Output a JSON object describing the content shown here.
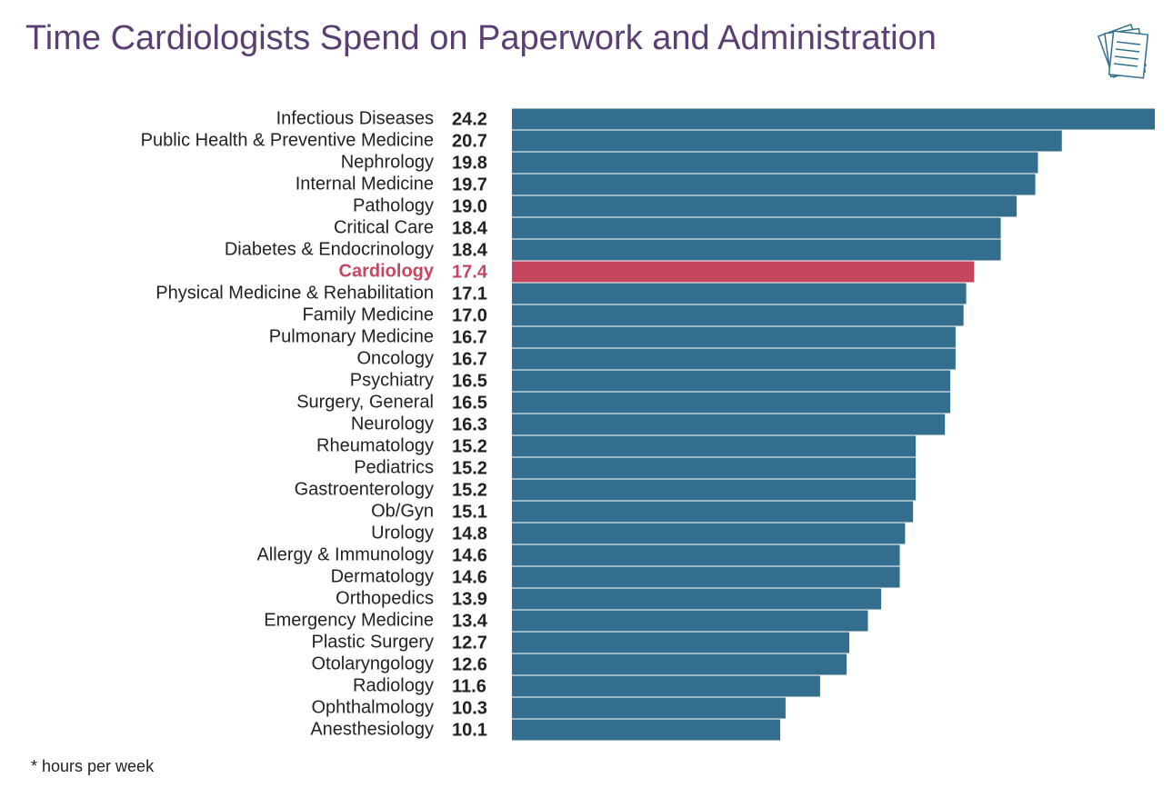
{
  "chart_data": {
    "type": "bar",
    "orientation": "horizontal",
    "title": "Time Cardiologists Spend on Paperwork and Administration",
    "note": "* hours per week",
    "categories": [
      "Infectious Diseases",
      "Public Health & Preventive Medicine",
      "Nephrology",
      "Internal Medicine",
      "Pathology",
      "Critical Care",
      "Diabetes & Endocrinology",
      "Cardiology",
      "Physical Medicine & Rehabilitation",
      "Family Medicine",
      "Pulmonary Medicine",
      "Oncology",
      "Psychiatry",
      "Surgery, General",
      "Neurology",
      "Rheumatology",
      "Pediatrics",
      "Gastroenterology",
      "Ob/Gyn",
      "Urology",
      "Allergy & Immunology",
      "Dermatology",
      "Orthopedics",
      "Emergency Medicine",
      "Plastic Surgery",
      "Otolaryngology",
      "Radiology",
      "Ophthalmology",
      "Anesthesiology"
    ],
    "values": [
      24.2,
      20.7,
      19.8,
      19.7,
      19.0,
      18.4,
      18.4,
      17.4,
      17.1,
      17.0,
      16.7,
      16.7,
      16.5,
      16.5,
      16.3,
      15.2,
      15.2,
      15.2,
      15.1,
      14.8,
      14.6,
      14.6,
      13.9,
      13.4,
      12.7,
      12.6,
      11.6,
      10.3,
      10.1
    ],
    "value_labels": [
      "24.2",
      "20.7",
      "19.8",
      "19.7",
      "19.0",
      "18.4",
      "18.4",
      "17.4",
      "17.1",
      "17.0",
      "16.7",
      "16.7",
      "16.5",
      "16.5",
      "16.3",
      "15.2",
      "15.2",
      "15.2",
      "15.1",
      "14.8",
      "14.6",
      "14.6",
      "13.9",
      "13.4",
      "12.7",
      "12.6",
      "11.6",
      "10.3",
      "10.1"
    ],
    "color": "#336e8e",
    "colors": [
      "#336e8e",
      "#336e8e",
      "#336e8e",
      "#336e8e",
      "#336e8e",
      "#336e8e",
      "#336e8e",
      "#c4475f",
      "#336e8e",
      "#336e8e",
      "#336e8e",
      "#336e8e",
      "#336e8e",
      "#336e8e",
      "#336e8e",
      "#336e8e",
      "#336e8e",
      "#336e8e",
      "#336e8e",
      "#336e8e",
      "#336e8e",
      "#336e8e",
      "#336e8e",
      "#336e8e",
      "#336e8e",
      "#336e8e",
      "#336e8e",
      "#336e8e",
      "#336e8e"
    ]
  }
}
